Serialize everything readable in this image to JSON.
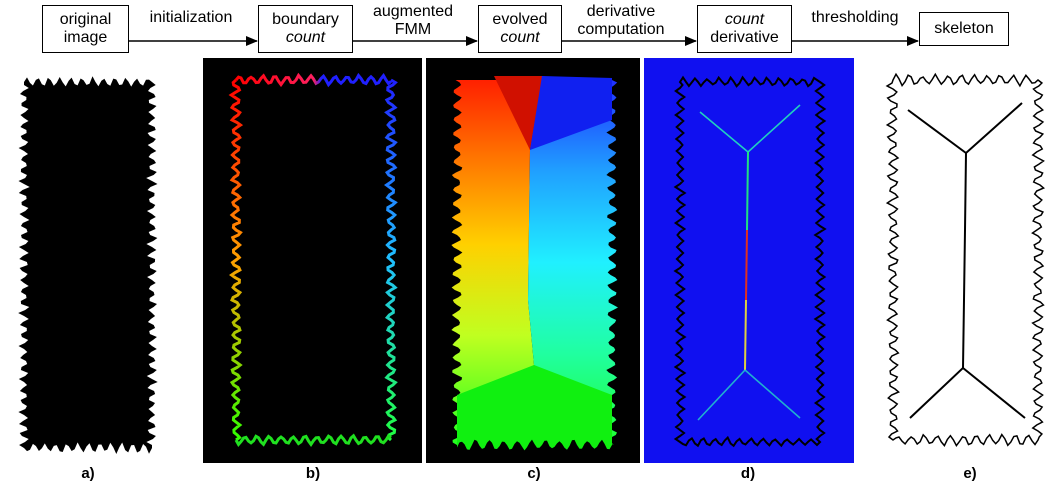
{
  "pipeline": {
    "stages": [
      {
        "line1": "original",
        "line2": "image",
        "italic1": false,
        "italic2": false
      },
      {
        "line1": "boundary",
        "line2": "count",
        "italic1": false,
        "italic2": true
      },
      {
        "line1": "evolved",
        "line2": "count",
        "italic1": false,
        "italic2": true
      },
      {
        "line1": "count",
        "line2": "derivative",
        "italic1": true,
        "italic2": false
      },
      {
        "line1": "skeleton",
        "line2": "",
        "italic1": false,
        "italic2": false
      }
    ],
    "edges": [
      {
        "line1": "initialization",
        "line2": ""
      },
      {
        "line1": "augmented",
        "line2": "FMM"
      },
      {
        "line1": "derivative",
        "line2": "computation"
      },
      {
        "line1": "thresholding",
        "line2": ""
      }
    ]
  },
  "panels": [
    {
      "label": "a)",
      "background": "#ffffff"
    },
    {
      "label": "b)",
      "background": "#000000"
    },
    {
      "label": "c)",
      "background": "#000000"
    },
    {
      "label": "d)",
      "background": "#1010f0"
    },
    {
      "label": "e)",
      "background": "#ffffff"
    }
  ],
  "colors": {
    "shape_fill": "#000000",
    "derivative_bg": "#1010f0",
    "skeleton_line": "#000000"
  }
}
